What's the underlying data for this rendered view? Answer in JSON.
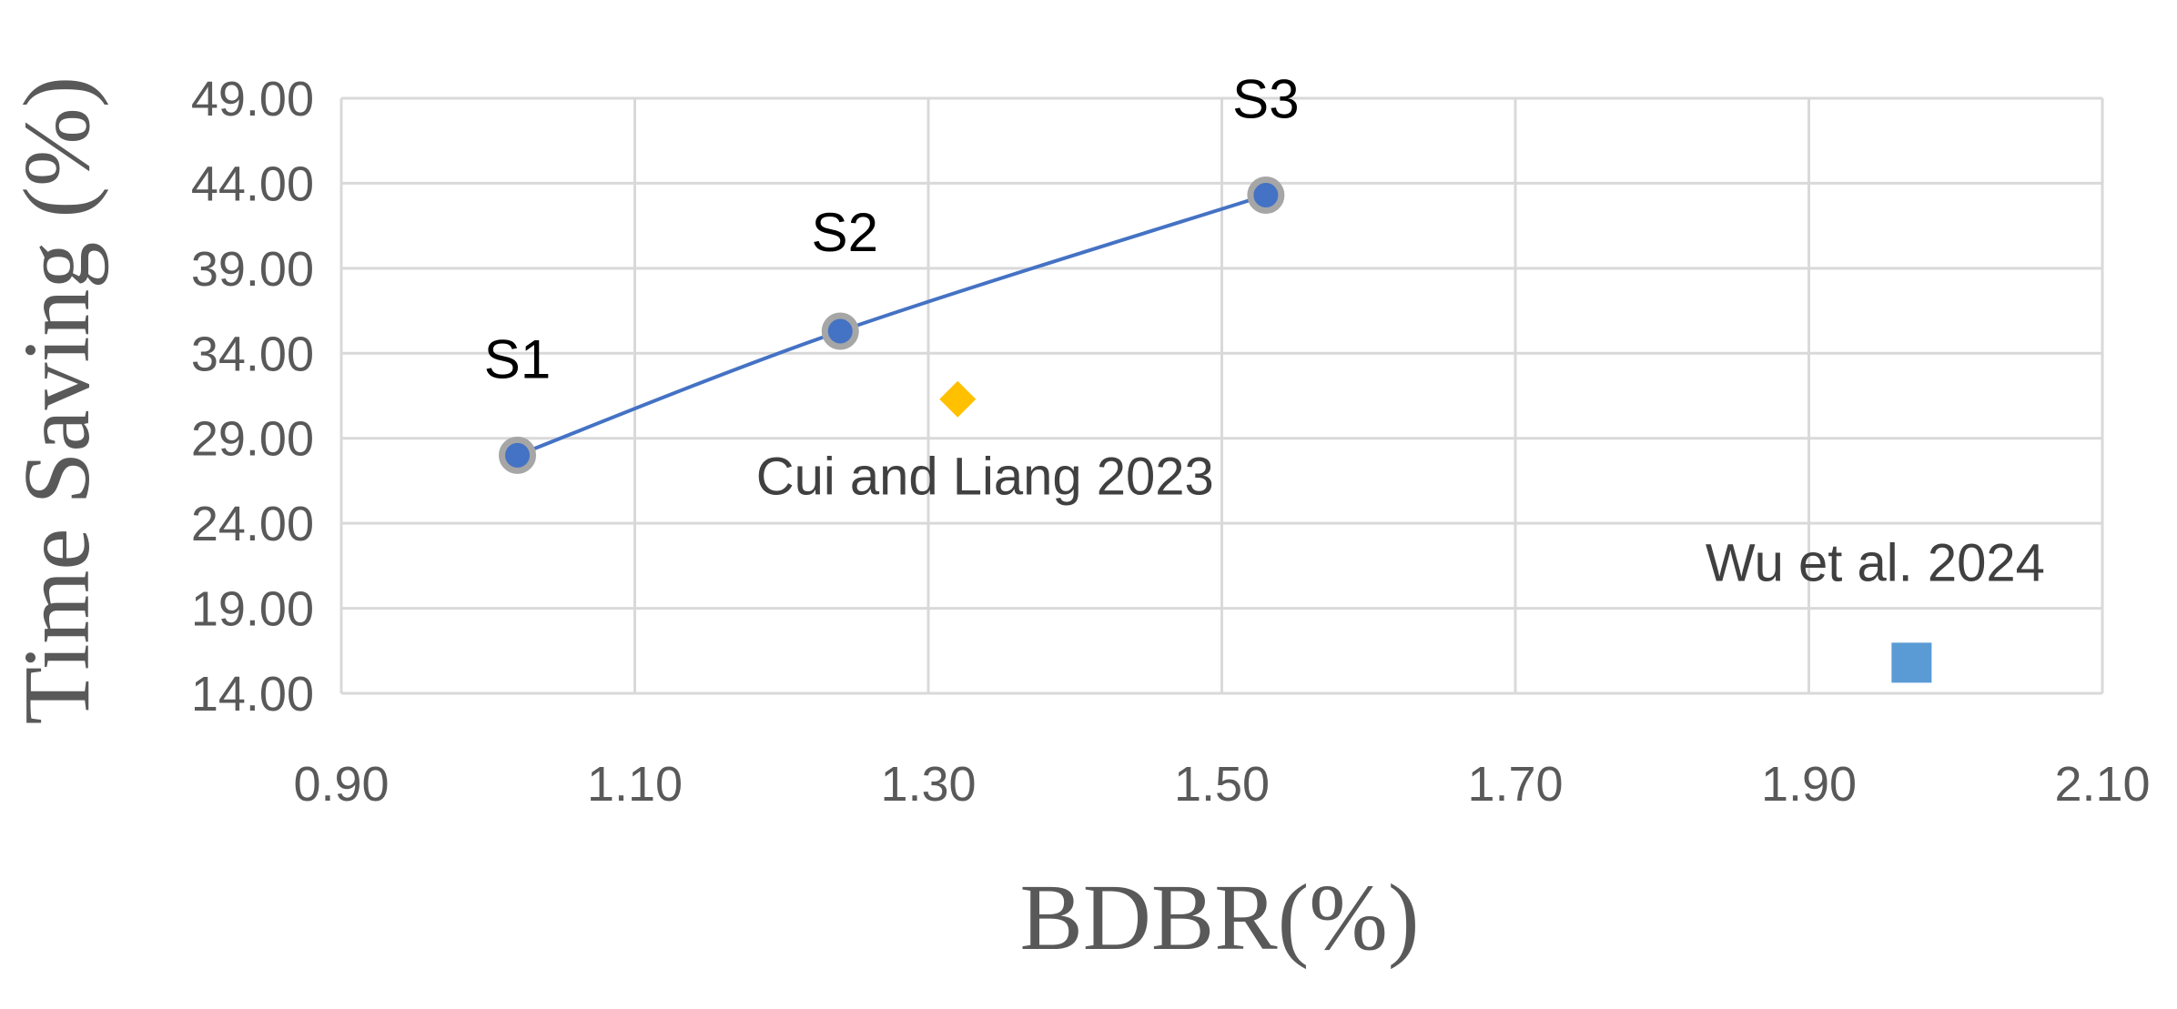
{
  "chart_data": {
    "type": "scatter",
    "title": "",
    "xlabel": "BDBR(%)",
    "ylabel": "Time Saving (%)",
    "xlim": [
      0.9,
      2.1
    ],
    "ylim": [
      14.0,
      49.0
    ],
    "x_ticks": [
      "0.90",
      "1.10",
      "1.30",
      "1.50",
      "1.70",
      "1.90",
      "2.10"
    ],
    "y_ticks": [
      "14.00",
      "19.00",
      "24.00",
      "29.00",
      "34.00",
      "39.00",
      "44.00",
      "49.00"
    ],
    "grid": true,
    "series": [
      {
        "marker": "circle",
        "line": "smooth",
        "color": "#4472C4",
        "points": [
          {
            "x": 1.02,
            "y": 28.0,
            "label": "S1"
          },
          {
            "x": 1.24,
            "y": 35.3,
            "label": "S2"
          },
          {
            "x": 1.53,
            "y": 43.3,
            "label": "S3"
          }
        ]
      },
      {
        "marker": "diamond",
        "color": "#FFC000",
        "points": [
          {
            "x": 1.32,
            "y": 31.3,
            "label": "Cui and Liang 2023"
          }
        ]
      },
      {
        "marker": "square",
        "color": "#5B9BD5",
        "points": [
          {
            "x": 1.97,
            "y": 15.8,
            "label": "Wu et al. 2024"
          }
        ]
      }
    ]
  }
}
